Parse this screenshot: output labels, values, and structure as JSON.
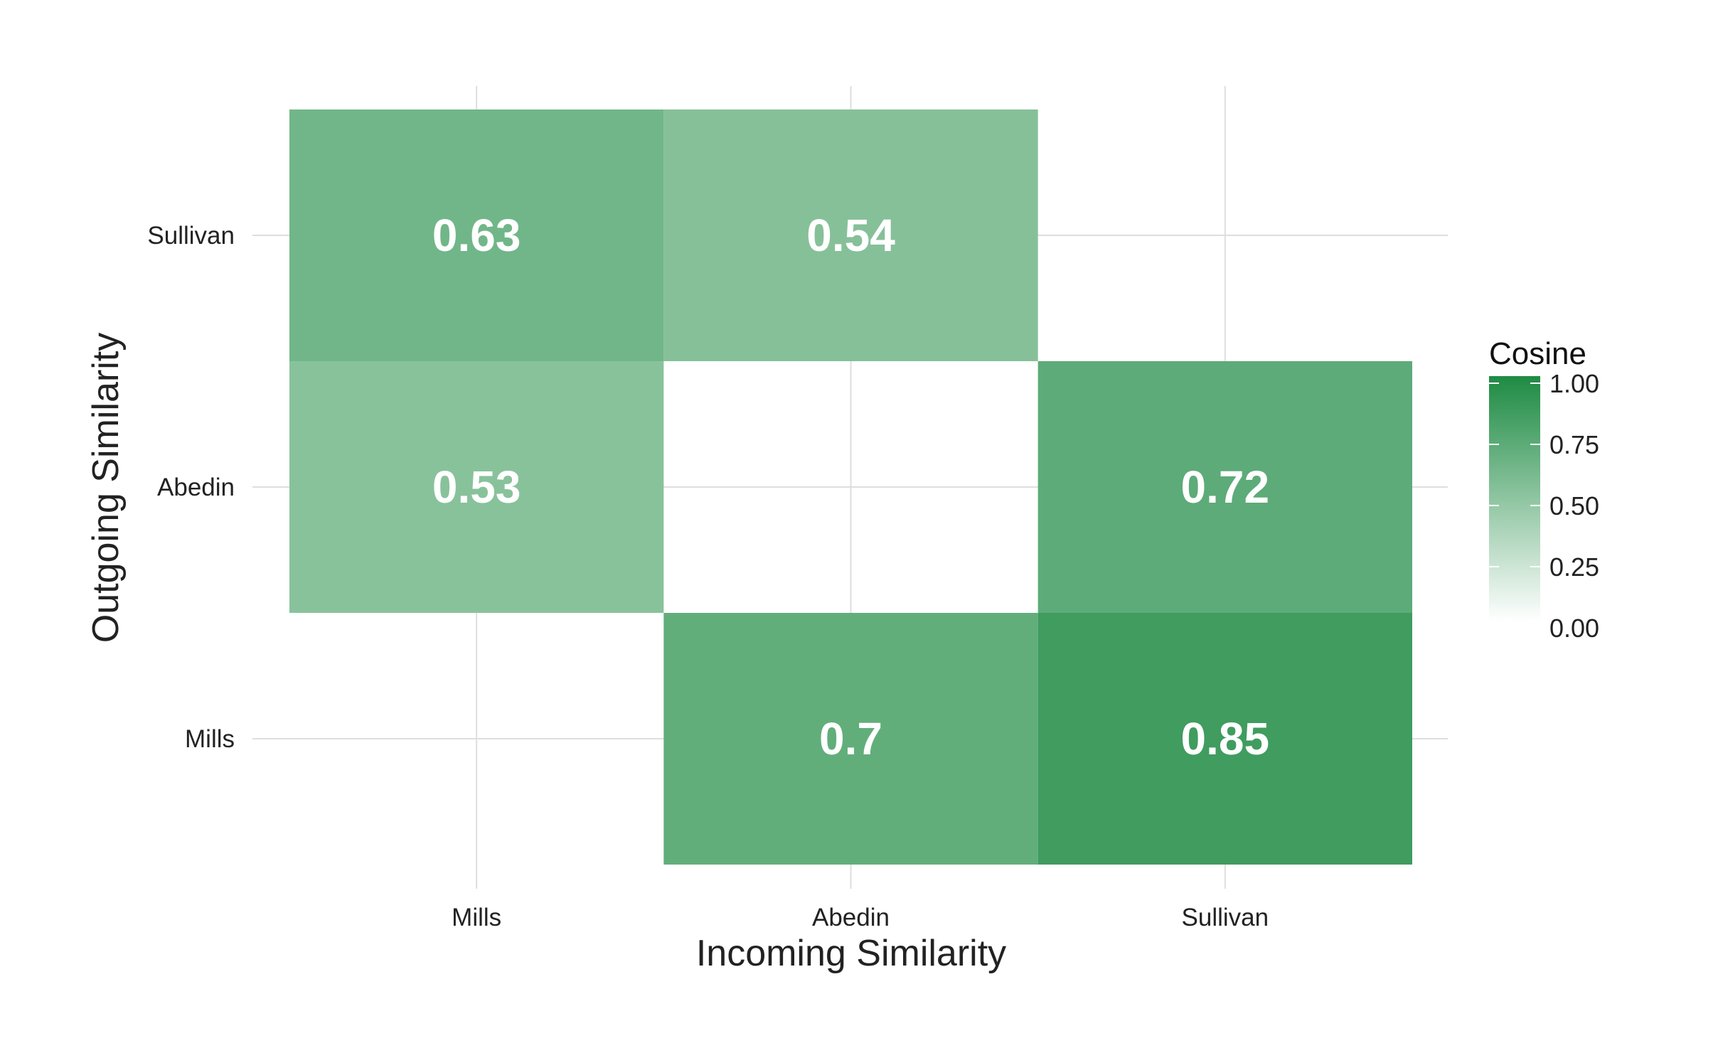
{
  "chart_data": {
    "type": "heatmap",
    "xlabel": "Incoming Similarity",
    "ylabel": "Outgoing Similarity",
    "x_categories": [
      "Mills",
      "Abedin",
      "Sullivan"
    ],
    "y_categories": [
      "Mills",
      "Abedin",
      "Sullivan"
    ],
    "cells": [
      {
        "x": "Mills",
        "y": "Sullivan",
        "value": 0.63,
        "label": "0.63"
      },
      {
        "x": "Abedin",
        "y": "Sullivan",
        "value": 0.54,
        "label": "0.54"
      },
      {
        "x": "Mills",
        "y": "Abedin",
        "value": 0.53,
        "label": "0.53"
      },
      {
        "x": "Sullivan",
        "y": "Abedin",
        "value": 0.72,
        "label": "0.72"
      },
      {
        "x": "Abedin",
        "y": "Mills",
        "value": 0.7,
        "label": "0.7"
      },
      {
        "x": "Sullivan",
        "y": "Mills",
        "value": 0.85,
        "label": "0.85"
      }
    ],
    "legend": {
      "title": "Cosine",
      "range": [
        0,
        1
      ],
      "ticks": [
        "0.00",
        "0.25",
        "0.50",
        "0.75",
        "1.00"
      ],
      "low_color": "#ffffff",
      "high_color": "#1e8b43"
    },
    "grid": true,
    "legend_position": "right"
  }
}
